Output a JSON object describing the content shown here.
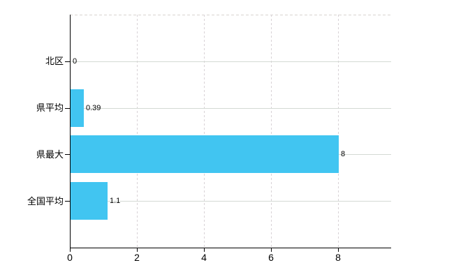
{
  "chart_data": {
    "type": "bar",
    "orientation": "horizontal",
    "title": "",
    "xlabel": "",
    "ylabel": "",
    "categories": [
      "北区",
      "県平均",
      "県最大",
      "全国平均"
    ],
    "values": [
      0,
      0.39,
      8,
      1.1
    ],
    "value_labels": [
      "0",
      "0.39",
      "8",
      "1.1"
    ],
    "x_ticks": [
      0,
      2,
      4,
      6,
      8
    ],
    "x_tick_labels": [
      "0",
      "2",
      "4",
      "6",
      "8"
    ],
    "xlim": [
      0,
      9.58
    ],
    "grid": {
      "horizontal": "solid",
      "vertical": "dashed",
      "top_border": "dashed"
    },
    "legend": "none",
    "colors": {
      "bar": "#41C5F1",
      "grid_horizontal": "#D4DAD4",
      "grid_vertical": "#D8D2D6",
      "top_border": "#D8D4D0",
      "axis": "#000000",
      "text": "#000000",
      "background": "#FFFFFF"
    }
  }
}
